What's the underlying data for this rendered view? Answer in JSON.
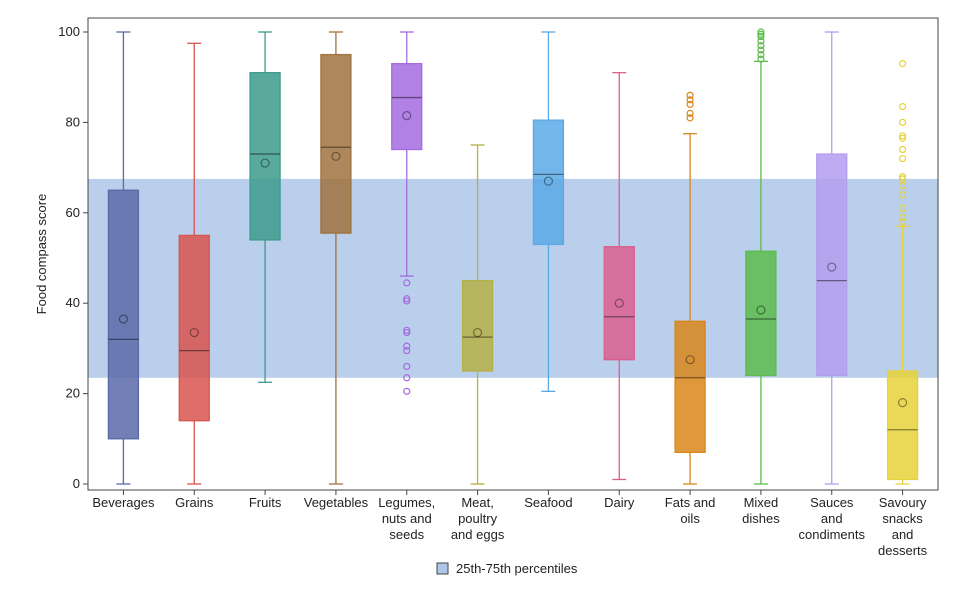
{
  "chart_data": {
    "type": "box",
    "ylabel": "Food compass score",
    "ylim": [
      0,
      100
    ],
    "yticks": [
      0,
      20,
      40,
      60,
      80,
      100
    ],
    "reference_band": {
      "label": "25th-75th percentiles",
      "low": 23.5,
      "high": 67.5,
      "color": "#aec7e8"
    },
    "legend_position": "bottom-center",
    "grid": false,
    "categories": [
      {
        "name": "Beverages",
        "lines": [
          "Beverages"
        ],
        "color": "#5a6aa8",
        "min": 0,
        "q1": 10,
        "median": 32,
        "q3": 65,
        "max": 100,
        "mean": 36.5,
        "outliers": []
      },
      {
        "name": "Grains",
        "lines": [
          "Grains"
        ],
        "color": "#d9534f",
        "min": 0,
        "q1": 14,
        "median": 29.5,
        "q3": 55,
        "max": 97.5,
        "mean": 33.5,
        "outliers": []
      },
      {
        "name": "Fruits",
        "lines": [
          "Fruits"
        ],
        "color": "#3d9a8c",
        "min": 22.5,
        "q1": 54,
        "median": 73,
        "q3": 91,
        "max": 100,
        "mean": 71,
        "outliers": []
      },
      {
        "name": "Vegetables",
        "lines": [
          "Vegetables"
        ],
        "color": "#a0723f",
        "min": 0,
        "q1": 55.5,
        "median": 74.5,
        "q3": 95,
        "max": 100,
        "mean": 72.5,
        "outliers": []
      },
      {
        "name": "Legumes, nuts and seeds",
        "lines": [
          "Legumes,",
          "nuts and",
          "seeds"
        ],
        "color": "#a56be0",
        "min": 46,
        "q1": 74,
        "median": 85.5,
        "q3": 93,
        "max": 100,
        "mean": 81.5,
        "outliers": [
          44.5,
          41,
          40.5,
          34,
          33.5,
          30.5,
          29.5,
          26,
          23.5,
          20.5
        ]
      },
      {
        "name": "Meat, poultry and eggs",
        "lines": [
          "Meat,",
          "poultry",
          "and eggs"
        ],
        "color": "#b5b048",
        "min": 0,
        "q1": 25,
        "median": 32.5,
        "q3": 45,
        "max": 75,
        "mean": 33.5,
        "outliers": []
      },
      {
        "name": "Seafood",
        "lines": [
          "Seafood"
        ],
        "color": "#5aa9e6",
        "min": 20.5,
        "q1": 53,
        "median": 68.5,
        "q3": 80.5,
        "max": 100,
        "mean": 67,
        "outliers": []
      },
      {
        "name": "Dairy",
        "lines": [
          "Dairy"
        ],
        "color": "#d9608e",
        "min": 1,
        "q1": 27.5,
        "median": 37,
        "q3": 52.5,
        "max": 91,
        "mean": 40,
        "outliers": []
      },
      {
        "name": "Fats and oils",
        "lines": [
          "Fats and",
          "oils"
        ],
        "color": "#d9861a",
        "min": 0,
        "q1": 7,
        "median": 23.5,
        "q3": 36,
        "max": 77.5,
        "mean": 27.5,
        "outliers": [
          81,
          82,
          84,
          85,
          86
        ]
      },
      {
        "name": "Mixed dishes",
        "lines": [
          "Mixed",
          "dishes"
        ],
        "color": "#5cbc4c",
        "min": 0,
        "q1": 24,
        "median": 36.5,
        "q3": 51.5,
        "max": 93.5,
        "mean": 38.5,
        "outliers": [
          94,
          95,
          96,
          97,
          98,
          99,
          99.5,
          100
        ]
      },
      {
        "name": "Sauces and condiments",
        "lines": [
          "Sauces",
          "and",
          "condiments"
        ],
        "color": "#b39df0",
        "min": 0,
        "q1": 24,
        "median": 45,
        "q3": 73,
        "max": 100,
        "mean": 48,
        "outliers": []
      },
      {
        "name": "Savoury snacks and desserts",
        "lines": [
          "Savoury",
          "snacks",
          "and",
          "desserts"
        ],
        "color": "#e6d23a",
        "min": 0,
        "q1": 1,
        "median": 12,
        "q3": 25,
        "max": 57,
        "mean": 18,
        "outliers": [
          58,
          59,
          61,
          64,
          66,
          67.5,
          68,
          72,
          74,
          76.5,
          77,
          80,
          83.5,
          93
        ]
      }
    ]
  }
}
